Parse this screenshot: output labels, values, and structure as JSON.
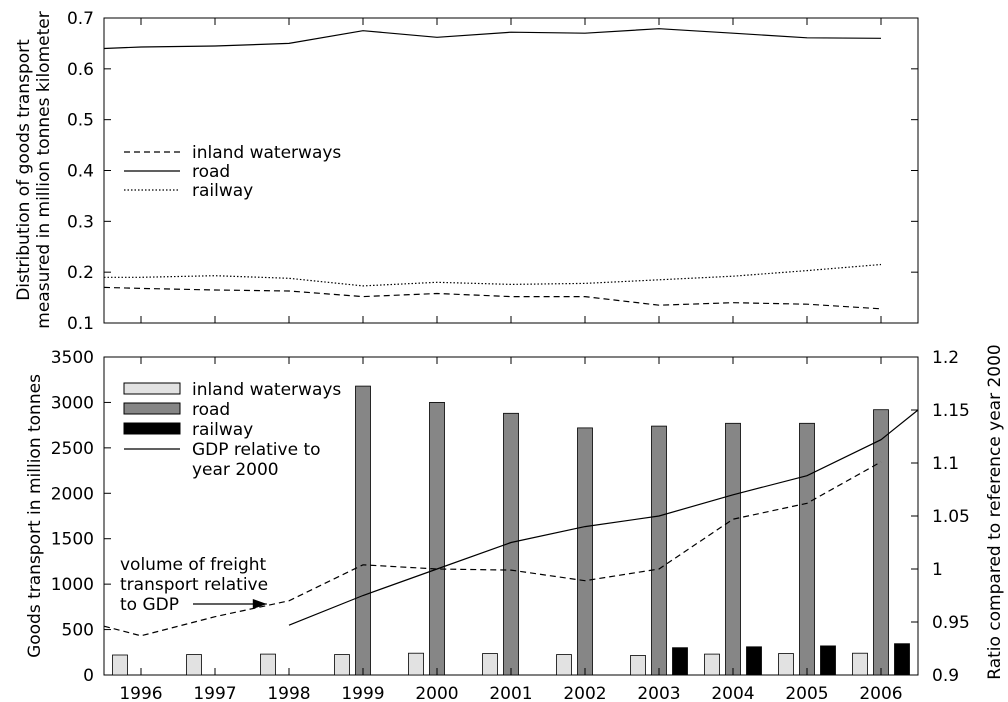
{
  "chart_data": [
    {
      "type": "line",
      "ylabel_lines": [
        "Distribution of goods transport",
        "measured in million tonnes kilometer"
      ],
      "ylim": [
        0.1,
        0.7
      ],
      "yticks": [
        "0.1",
        "0.2",
        "0.3",
        "0.4",
        "0.5",
        "0.6",
        "0.7"
      ],
      "x": [
        1995.5,
        1996,
        1997,
        1998,
        1999,
        2000,
        2001,
        2002,
        2003,
        2004,
        2005,
        2006
      ],
      "legend_position": "middle-left",
      "grid": false,
      "series": [
        {
          "name": "inland waterways",
          "style": "dashed",
          "values": [
            0.17,
            0.168,
            0.165,
            0.163,
            0.152,
            0.158,
            0.152,
            0.152,
            0.135,
            0.14,
            0.137,
            0.128
          ]
        },
        {
          "name": "road",
          "style": "solid",
          "values": [
            0.64,
            0.643,
            0.645,
            0.65,
            0.675,
            0.662,
            0.672,
            0.67,
            0.679,
            0.67,
            0.661,
            0.66
          ]
        },
        {
          "name": "railway",
          "style": "dotted",
          "values": [
            0.19,
            0.19,
            0.193,
            0.188,
            0.173,
            0.18,
            0.176,
            0.178,
            0.185,
            0.192,
            0.203,
            0.215
          ]
        }
      ]
    },
    {
      "type": "bar",
      "ylabel": "Goods transport in million tonnes",
      "y2label": "Ratio compared to reference year 2000",
      "ylim": [
        0,
        3500
      ],
      "yticks": [
        "0",
        "500",
        "1000",
        "1500",
        "2000",
        "2500",
        "3000",
        "3500"
      ],
      "y2lim": [
        0.9,
        1.2
      ],
      "y2ticks": [
        "0.9",
        "0.95",
        "1",
        "1.05",
        "1.1",
        "1.15",
        "1.2"
      ],
      "categories": [
        "1996",
        "1997",
        "1998",
        "1999",
        "2000",
        "2001",
        "2002",
        "2003",
        "2004",
        "2005",
        "2006"
      ],
      "legend_position": "top-left",
      "grid": false,
      "series": [
        {
          "name": "inland waterways",
          "color": "#e2e2e2",
          "values": [
            220,
            225,
            230,
            225,
            240,
            235,
            225,
            215,
            230,
            235,
            240
          ]
        },
        {
          "name": "road",
          "color": "#868686",
          "values": [
            null,
            null,
            null,
            3180,
            3000,
            2880,
            2720,
            2740,
            2770,
            2770,
            2920
          ]
        },
        {
          "name": "railway",
          "color": "#000000",
          "values": [
            null,
            null,
            null,
            null,
            null,
            null,
            null,
            300,
            310,
            320,
            345
          ]
        }
      ],
      "lines": [
        {
          "name": "GDP relative to year 2000",
          "legend_lines": [
            "GDP relative to",
            "year 2000"
          ],
          "axis": "y2",
          "style": "solid",
          "x": [
            1998,
            1999,
            2000,
            2001,
            2002,
            2003,
            2004,
            2005,
            2006,
            2006.5
          ],
          "values": [
            0.947,
            0.975,
            1.0,
            1.025,
            1.04,
            1.05,
            1.07,
            1.088,
            1.122,
            1.15
          ]
        },
        {
          "name": "volume of freight transport relative to GDP",
          "axis": "y2",
          "style": "dashed",
          "x": [
            1995.5,
            1996,
            1997,
            1998,
            1999,
            2000,
            2001,
            2002,
            2003,
            2004,
            2005,
            2006
          ],
          "values": [
            0.946,
            0.937,
            0.955,
            0.97,
            1.004,
            1.0,
            0.999,
            0.989,
            1.0,
            1.047,
            1.062,
            1.101
          ]
        }
      ],
      "annotation": {
        "lines": [
          "volume of freight",
          "transport relative",
          "to GDP"
        ],
        "arrow_to_x": 1997.7,
        "arrow_to_y2": 0.967
      }
    }
  ]
}
